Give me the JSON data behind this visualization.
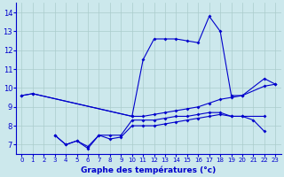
{
  "xlabel": "Graphe des températures (°c)",
  "xlim": [
    -0.5,
    23.5
  ],
  "ylim": [
    6.5,
    14.5
  ],
  "yticks": [
    7,
    8,
    9,
    10,
    11,
    12,
    13,
    14
  ],
  "xticks": [
    0,
    1,
    2,
    3,
    4,
    5,
    6,
    7,
    8,
    9,
    10,
    11,
    12,
    13,
    14,
    15,
    16,
    17,
    18,
    19,
    20,
    21,
    22,
    23
  ],
  "bg_color": "#cce8ec",
  "grid_color": "#aacccc",
  "line_color": "#0000cc",
  "series": [
    {
      "x": [
        0,
        1,
        10,
        11,
        12,
        13,
        14,
        15,
        16,
        17,
        18,
        19,
        20,
        22,
        23
      ],
      "y": [
        9.6,
        9.7,
        8.5,
        11.5,
        12.6,
        12.6,
        12.6,
        12.5,
        12.4,
        13.8,
        13.0,
        9.6,
        9.6,
        10.5,
        10.2
      ]
    },
    {
      "x": [
        0,
        1,
        10,
        11,
        12,
        13,
        14,
        15,
        16,
        17,
        18,
        19,
        20,
        22,
        23
      ],
      "y": [
        9.6,
        9.7,
        8.5,
        8.5,
        8.6,
        8.7,
        8.8,
        8.9,
        9.0,
        9.2,
        9.4,
        9.5,
        9.6,
        10.1,
        10.2
      ]
    },
    {
      "x": [
        3,
        4,
        5,
        6,
        7,
        8,
        9,
        10,
        11,
        12,
        13,
        14,
        15,
        16,
        17,
        18,
        19,
        20,
        21,
        22
      ],
      "y": [
        7.5,
        7.0,
        7.2,
        6.9,
        7.5,
        7.5,
        7.5,
        8.3,
        8.3,
        8.3,
        8.4,
        8.5,
        8.5,
        8.6,
        8.7,
        8.7,
        8.5,
        8.5,
        8.3,
        7.7
      ]
    },
    {
      "x": [
        3,
        4,
        5,
        6,
        7,
        8,
        9,
        10,
        11,
        12,
        13,
        14,
        15,
        16,
        17,
        18,
        19,
        20,
        22
      ],
      "y": [
        7.5,
        7.0,
        7.2,
        6.8,
        7.5,
        7.3,
        7.4,
        8.0,
        8.0,
        8.0,
        8.1,
        8.2,
        8.3,
        8.4,
        8.5,
        8.6,
        8.5,
        8.5,
        8.5
      ]
    }
  ]
}
